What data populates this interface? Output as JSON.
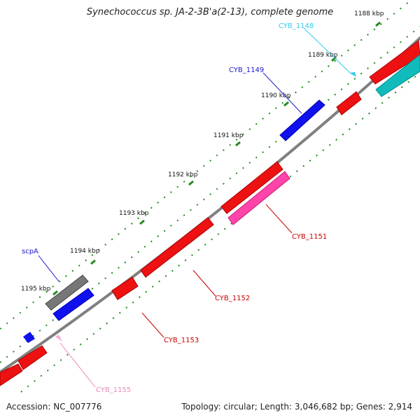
{
  "title": "Synechococcus sp. JA-2-3B'a(2-13), complete genome",
  "footer": {
    "accession": "Accession: NC_007776",
    "summary": "Topology: circular; Length: 3,046,682 bp; Genes: 2,914"
  },
  "ticks": [
    {
      "label": "1188 kbp"
    },
    {
      "label": "1189 kbp"
    },
    {
      "label": "1190 kbp"
    },
    {
      "label": "1191 kbp"
    },
    {
      "label": "1192 kbp"
    },
    {
      "label": "1193 kbp"
    },
    {
      "label": "1194 kbp"
    },
    {
      "label": "1195 kbp"
    }
  ],
  "gene_labels": [
    {
      "name": "CYB_1148",
      "color": "#33ccee"
    },
    {
      "name": "CYB_1149",
      "color": "#1a1acc"
    },
    {
      "name": "CYB_1151",
      "color": "#cc0000"
    },
    {
      "name": "CYB_1152",
      "color": "#cc0000"
    },
    {
      "name": "CYB_1153",
      "color": "#cc0000"
    },
    {
      "name": "CYB_1155",
      "color": "#ee88bb"
    },
    {
      "name": "scpA",
      "color": "#1a1acc"
    }
  ],
  "colors": {
    "backbone": "#808080",
    "tick_marks": "#1f8a1f",
    "red_gene": "#ee1111",
    "blue_gene": "#1111ee",
    "teal_gene": "#11bbbb",
    "pink_gene": "#ff44aa",
    "gray_gene": "#777777",
    "light_pink_gene": "#ffaadd",
    "cyan_gene": "#33ccee"
  }
}
